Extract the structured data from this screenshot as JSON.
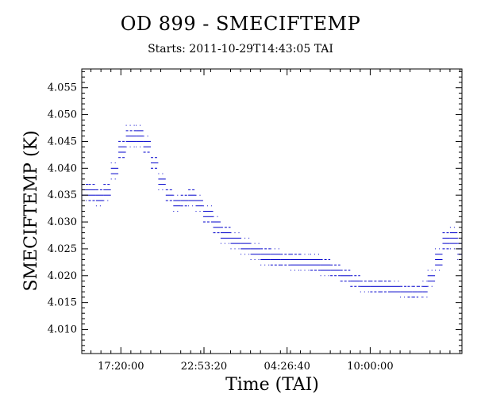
{
  "chart_data": {
    "type": "scatter",
    "title": "OD 899 - SMECIFTEMP",
    "subtitle": "Starts: 2011-10-29T14:43:05 TAI",
    "xlabel": "Time (TAI)",
    "ylabel": "SMECIFTEMP (K)",
    "xlim": [
      "2011-10-29T14:43:05",
      "2011-10-30T16:08:00"
    ],
    "ylim": [
      4.0055,
      4.0585
    ],
    "x_tick_labels": [
      "17:20:00",
      "22:53:20",
      "04:26:40",
      "10:00:00"
    ],
    "x_tick_times": [
      "2011-10-29T17:20:00",
      "2011-10-29T22:53:20",
      "2011-10-30T04:26:40",
      "2011-10-30T10:00:00"
    ],
    "y_ticks": [
      4.01,
      4.015,
      4.02,
      4.025,
      4.03,
      4.035,
      4.04,
      4.045,
      4.05,
      4.055
    ],
    "y_tick_labels": [
      "4.010",
      "4.015",
      "4.020",
      "4.025",
      "4.030",
      "4.035",
      "4.040",
      "4.045",
      "4.050",
      "4.055"
    ],
    "grid": false,
    "series": [
      {
        "color": "#0000cc",
        "x": [
          "2011-10-29T14:43:05",
          "2011-10-29T15:10:00",
          "2011-10-29T15:40:00",
          "2011-10-29T16:10:00",
          "2011-10-29T16:40:00",
          "2011-10-29T17:10:00",
          "2011-10-29T17:40:00",
          "2011-10-29T18:20:00",
          "2011-10-29T18:50:00",
          "2011-10-29T19:20:00",
          "2011-10-29T19:50:00",
          "2011-10-29T20:20:00",
          "2011-10-29T20:50:00",
          "2011-10-29T21:20:00",
          "2011-10-29T21:50:00",
          "2011-10-29T22:20:00",
          "2011-10-29T22:50:00",
          "2011-10-29T23:30:00",
          "2011-10-30T00:00:00",
          "2011-10-30T00:40:00",
          "2011-10-30T01:20:00",
          "2011-10-30T02:00:00",
          "2011-10-30T02:40:00",
          "2011-10-30T03:20:00",
          "2011-10-30T04:00:00",
          "2011-10-30T04:40:00",
          "2011-10-30T05:20:00",
          "2011-10-30T06:00:00",
          "2011-10-30T06:40:00",
          "2011-10-30T07:20:00",
          "2011-10-30T08:00:00",
          "2011-10-30T08:40:00",
          "2011-10-30T09:20:00",
          "2011-10-30T10:00:00",
          "2011-10-30T10:40:00",
          "2011-10-30T11:20:00",
          "2011-10-30T12:00:00",
          "2011-10-30T12:30:00",
          "2011-10-30T12:50:00",
          "2011-10-30T13:10:00",
          "2011-10-30T13:30:00",
          "2011-10-30T13:50:00",
          "2011-10-30T14:20:00",
          "2011-10-30T14:50:00",
          "2011-10-30T15:20:00",
          "2011-10-30T15:50:00",
          "2011-10-30T16:08:00"
        ],
        "y": [
          4.0355,
          4.036,
          4.035,
          4.0345,
          4.037,
          4.042,
          4.045,
          4.0465,
          4.0455,
          4.043,
          4.039,
          4.036,
          4.034,
          4.033,
          4.035,
          4.0345,
          4.0325,
          4.03,
          4.0285,
          4.027,
          4.026,
          4.025,
          4.024,
          4.0235,
          4.023,
          4.023,
          4.0225,
          4.0225,
          4.022,
          4.0215,
          4.0205,
          4.0195,
          4.0185,
          4.018,
          4.018,
          4.0178,
          4.0175,
          4.017,
          4.017,
          4.0172,
          4.0172,
          4.018,
          4.021,
          4.025,
          4.028,
          4.026,
          4.024
        ],
        "spread": [
          0.0035,
          0.004,
          0.0045,
          0.004,
          0.004,
          0.004,
          0.0045,
          0.0045,
          0.0045,
          0.004,
          0.0035,
          0.0035,
          0.003,
          0.003,
          0.0045,
          0.004,
          0.0035,
          0.0035,
          0.0035,
          0.0035,
          0.0035,
          0.0035,
          0.0035,
          0.0035,
          0.0035,
          0.0035,
          0.0035,
          0.0035,
          0.0035,
          0.0035,
          0.0035,
          0.003,
          0.003,
          0.003,
          0.003,
          0.003,
          0.003,
          0.003,
          0.003,
          0.003,
          0.003,
          0.0035,
          0.004,
          0.0045,
          0.005,
          0.0045,
          0.004
        ]
      }
    ]
  }
}
